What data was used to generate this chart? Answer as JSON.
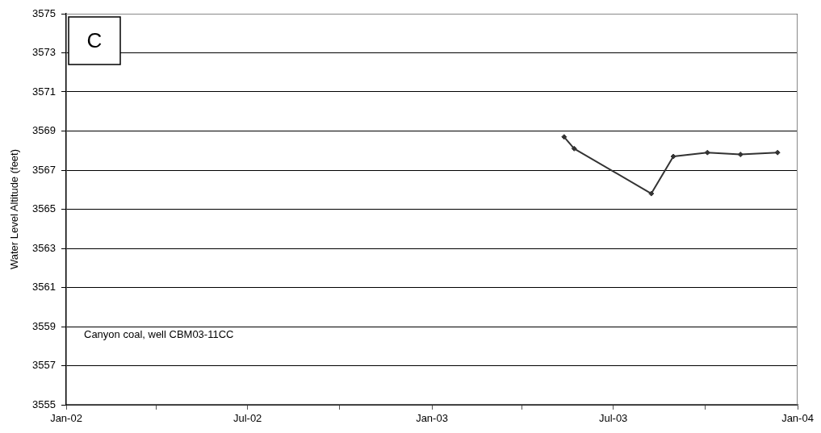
{
  "chart_data": {
    "type": "line",
    "ylabel": "Water Level Altitude (feet)",
    "annotations": [
      "C",
      "Canyon coal, well CBM03-11CC"
    ],
    "x": [
      "2003-05-13",
      "2003-05-23",
      "2003-08-08",
      "2003-08-30",
      "2003-10-03",
      "2003-11-05",
      "2003-12-12"
    ],
    "values": [
      3568.7,
      3568.1,
      3565.8,
      3567.7,
      3567.9,
      3567.8,
      3567.9
    ],
    "color": "#333333",
    "xlim": [
      "2002-01",
      "2004-01"
    ],
    "xticks": [
      {
        "value": "2002-01",
        "label": "Jan-02"
      },
      {
        "value": "2002-04",
        "label": null
      },
      {
        "value": "2002-07",
        "label": "Jul-02"
      },
      {
        "value": "2002-10",
        "label": null
      },
      {
        "value": "2003-01",
        "label": "Jan-03"
      },
      {
        "value": "2003-04",
        "label": null
      },
      {
        "value": "2003-07",
        "label": "Jul-03"
      },
      {
        "value": "2003-10",
        "label": null
      },
      {
        "value": "2004-01",
        "label": "Jan-04"
      }
    ],
    "ylim": [
      3555,
      3575
    ],
    "yticks": [
      3555,
      3557,
      3559,
      3561,
      3563,
      3565,
      3567,
      3569,
      3571,
      3573,
      3575
    ],
    "grid": "y",
    "marker": "diamond",
    "line_style": "solid"
  }
}
